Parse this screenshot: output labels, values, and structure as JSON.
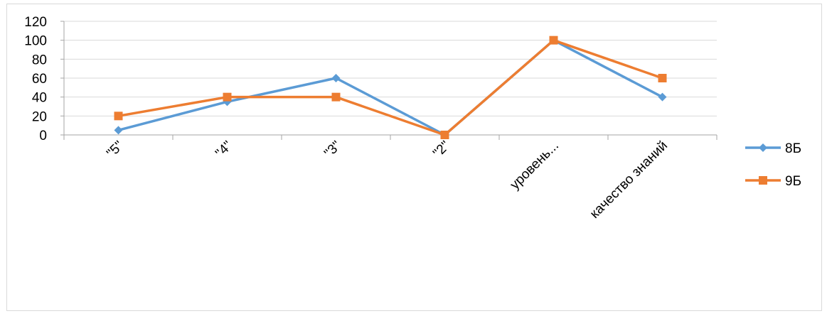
{
  "chart_data": {
    "type": "line",
    "title": "",
    "xlabel": "",
    "ylabel": "",
    "categories": [
      "\"5\"",
      "\"4\"",
      "\"3\"",
      "\"2\"",
      "уровень...",
      "качество знаний"
    ],
    "ylim": [
      0,
      120
    ],
    "yticks": [
      0,
      20,
      40,
      60,
      80,
      100,
      120
    ],
    "grid": true,
    "legend_position": "right",
    "series": [
      {
        "name": "8Б",
        "values": [
          5,
          35,
          60,
          0,
          100,
          40
        ],
        "color": "#5b9bd5",
        "marker": "diamond"
      },
      {
        "name": "9Б",
        "values": [
          20,
          40,
          40,
          0,
          100,
          60
        ],
        "color": "#ed7d31",
        "marker": "square"
      }
    ]
  }
}
